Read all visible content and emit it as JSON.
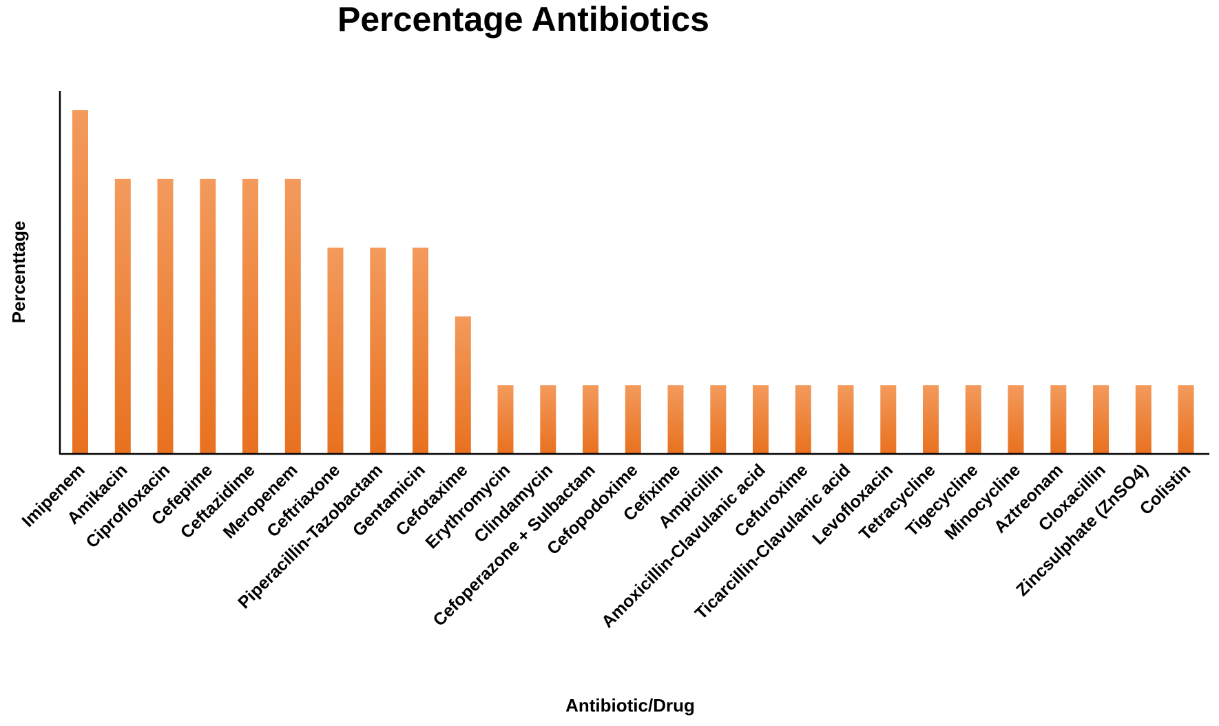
{
  "chart_data": {
    "type": "bar",
    "title": "Percentage Antibiotics",
    "xlabel": "Antibiotic/Drug",
    "ylabel": "Percenttage",
    "categories": [
      "Imipenem",
      "Amikacin",
      "Ciprofloxacin",
      "Cefepime",
      "Ceftazidime",
      "Meropenem",
      "Ceftriaxone",
      "Piperacillin-Tazobactam",
      "Gentamicin",
      "Cefotaxime",
      "Erythromycin",
      "Clindamycin",
      "Cefoperazone + Sulbactam",
      "Cefopodoxime",
      "Cefixime",
      "Ampicillin",
      "Amoxicillin-Clavulanic acid",
      "Cefuroxime",
      "Ticarcillin-Clavulanic acid",
      "Levofloxacin",
      "Tetracycline",
      "Tigecycline",
      "Minocycline",
      "Aztreonam",
      "Cloxacillin",
      "Zincsulphate (ZnSO4)",
      "Colistin"
    ],
    "values": [
      5,
      4,
      4,
      4,
      4,
      4,
      3,
      3,
      3,
      2,
      1,
      1,
      1,
      1,
      1,
      1,
      1,
      1,
      1,
      1,
      1,
      1,
      1,
      1,
      1,
      1,
      1
    ],
    "ylim": [
      0,
      5.3
    ],
    "grid": false,
    "legend": "none",
    "colors": {
      "bar_top": "#F39A5C",
      "bar_bottom": "#E8711F",
      "axis": "#000000"
    }
  }
}
